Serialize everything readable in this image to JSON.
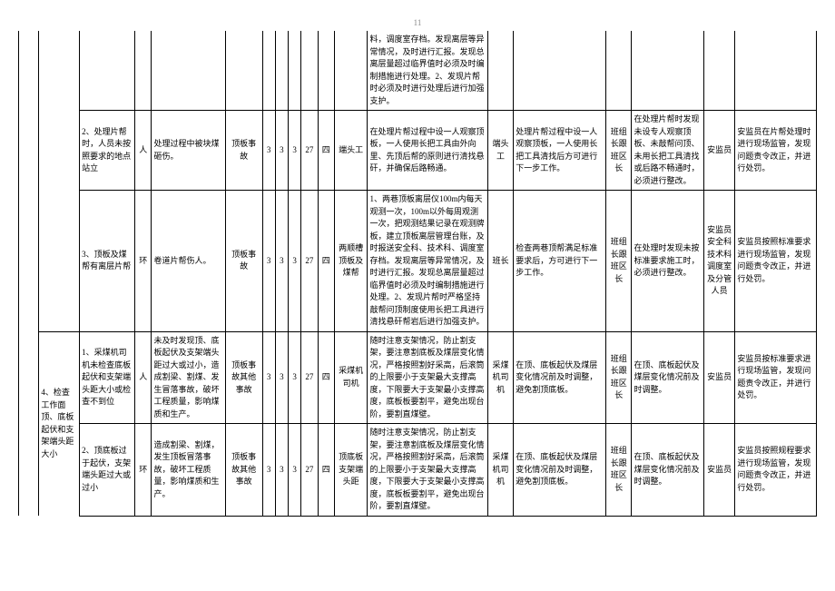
{
  "page_number": "11",
  "colors": {
    "border": "#000000",
    "text": "#000000",
    "background": "#ffffff",
    "page_num": "#888888"
  },
  "font": {
    "family": "SimSun",
    "size_pt": 9,
    "line_height": 1.5
  },
  "columns": [
    {
      "w": 22
    },
    {
      "w": 44
    },
    {
      "w": 60
    },
    {
      "w": 18
    },
    {
      "w": 80
    },
    {
      "w": 40
    },
    {
      "w": 14
    },
    {
      "w": 14
    },
    {
      "w": 14
    },
    {
      "w": 18
    },
    {
      "w": 18
    },
    {
      "w": 36
    },
    {
      "w": 130
    },
    {
      "w": 28
    },
    {
      "w": 100
    },
    {
      "w": 28
    },
    {
      "w": 78
    },
    {
      "w": 34
    },
    {
      "w": 88
    }
  ],
  "rows": [
    {
      "cells": {
        "c12": "料，调度室存档。发现离层等异常情况，及时进行汇报。发现总离层量超过临界值时必须及时编制措施进行处理。2、发现片帮时必须及时进行处理后进行加强支护。"
      }
    },
    {
      "cells": {
        "c2": "2、处理片帮时，人员未按照要求的地点站立",
        "c3": "人",
        "c4": "处理过程中被块煤砸伤。",
        "c5": "顶板事故",
        "c6": "3",
        "c7": "3",
        "c8": "3",
        "c9": "27",
        "c10": "四",
        "c11": "端头工",
        "c12": "在处理片帮过程中设一人观察顶板，一人使用长把工具由外向里、先顶后帮的原则进行清找悬矸，并确保后路畅通。",
        "c13": "端头工",
        "c14": "处理片帮过程中设一人观察顶板，一人使用长把工具清找后方可进行下一步工作。",
        "c15": "班组长跟班区长",
        "c16": "在处理片帮时发现未设专人观察顶板、未敲帮问顶、未用长把工具清找或后路不畅通时，必须进行整改。",
        "c17": "安监员",
        "c18": "安监员在片帮处理时进行现场监管，发现问题责令改正，并进行处罚。"
      }
    },
    {
      "cells": {
        "c2": "3、顶板及煤帮有离层片帮",
        "c3": "环",
        "c4": "卷道片帮伤人。",
        "c5": "顶板事故",
        "c6": "3",
        "c7": "3",
        "c8": "3",
        "c9": "27",
        "c10": "四",
        "c11": "两顺槽顶板及煤帮",
        "c12": "1、两巷顶板离层仪100m内每天观测一次，100m以外每周观测一次，把观测结果记录在观测牌板，建立顶板离层管理台账，及时报送安全科、技术科、调度室存档。发现离层等异常情况，及时进行汇报。发现总离层量超过临界值时必须及时编制措施进行处理。2、发现片帮时严格坚持敲帮问顶制度使用长把工具进行清找悬矸帮岩后进行加强支护。",
        "c13": "班长",
        "c14": "检查两巷顶帮满足标准要求后，方可进行下一步工作。",
        "c15": "班组长跟班区长",
        "c16": "在处理时发现未按标准要求施工时，必须进行整改。",
        "c17": "安监员安全科技术科调度室及分管人员",
        "c18": "安监员按照标准要求进行现场监管，发现问题责令改正，并进行处罚。"
      }
    },
    {
      "cells": {
        "c1": "4、检查工作面顶、底板起伏和支架端头距大小",
        "c2": "1、采煤机司机未检查底板起伏和支架端头距大小或检查不到位",
        "c3": "人",
        "c4": "未及时发现顶、底板起伏及支架端头距过大或过小，造成割梁、割煤、发生冒落事故，破坏工程质量，影响煤质和生产。",
        "c5": "顶板事故其他事故",
        "c6": "3",
        "c7": "3",
        "c8": "3",
        "c9": "27",
        "c10": "四",
        "c11": "采煤机司机",
        "c12": "随时注意支架情况，防止割支架，要注意割底板及煤层变化情况，严格按照割好采高，后滚筒的上限要小于支架最大支撑高度，下限要大于支架最小支撑高度，底板板要割平，避免出现台阶，要割直煤壁。",
        "c13": "采煤机司机",
        "c14": "在顶、底板起伏及煤层变化情况前及时调整，避免割顶底板。",
        "c15": "班组长跟班区长",
        "c16": "在顶、底板起伏及煤层变化情况前及时调整。",
        "c17": "安监员",
        "c18": "安监员按标准要求进行现场监管，发现问题责令改正，并进行处罚。"
      }
    },
    {
      "cells": {
        "c2": "2、顶底板过于起伏，支架端头距过大或过小",
        "c3": "环",
        "c4": "造成割梁、割煤，发生顶板冒落事故，破坏工程质量，影响煤质和生产。",
        "c5": "顶板事故其他事故",
        "c6": "3",
        "c7": "3",
        "c8": "3",
        "c9": "27",
        "c10": "四",
        "c11": "顶底板支架端头距",
        "c12": "随时注意支架情况，防止割支架，要注意割底板及煤层变化情况，严格按照割好采高，后滚筒的上限要小于支架最大支撑高度，下限要大于支架最小支撑高度，底板板要割平，避免出现台阶，要割直煤壁。",
        "c13": "采煤机司机",
        "c14": "在顶、底板起伏及煤层变化情况前及时调整，避免割顶底板。",
        "c15": "班组长跟班区长",
        "c16": "在顶、底板起伏及煤层变化情况前及时调整。",
        "c17": "安监员",
        "c18": "安监员按照规程要求进行现场监管，发现问题责令改正，并进行处罚。"
      }
    }
  ]
}
